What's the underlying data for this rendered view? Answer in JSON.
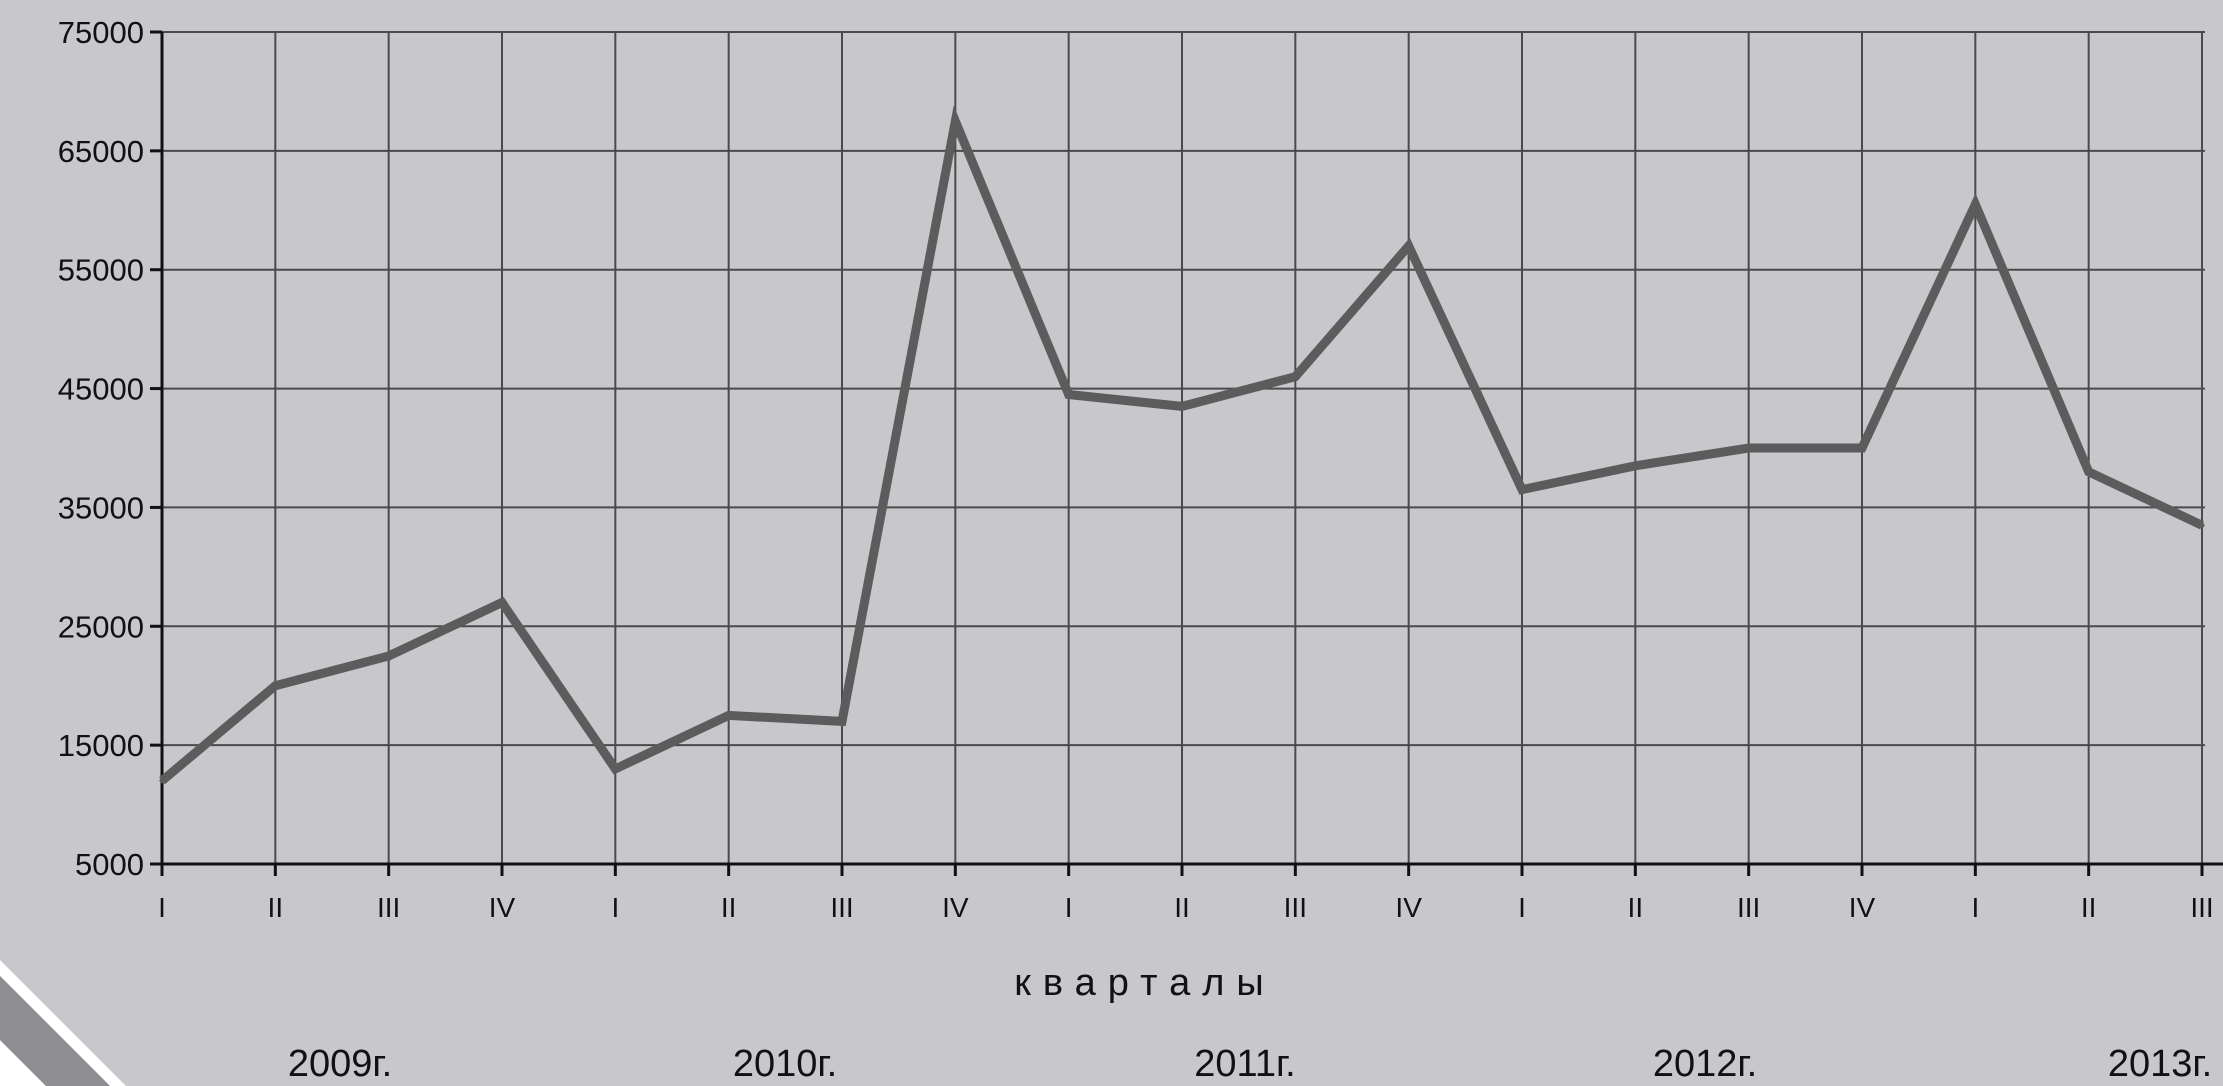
{
  "chart_data": {
    "type": "line",
    "title": "",
    "xlabel": "кварталы",
    "ylabel": "",
    "ylim": [
      5000,
      75000
    ],
    "yticks": [
      5000,
      15000,
      25000,
      35000,
      45000,
      55000,
      65000,
      75000
    ],
    "grid": true,
    "legend": "none",
    "categories": [
      "I",
      "II",
      "III",
      "IV",
      "I",
      "II",
      "III",
      "IV",
      "I",
      "II",
      "III",
      "IV",
      "I",
      "II",
      "III",
      "IV",
      "I",
      "II",
      "III"
    ],
    "year_labels": [
      "2009г.",
      "2010г.",
      "2011г.",
      "2012г.",
      "2013г."
    ],
    "series": [
      {
        "values": [
          12000,
          20000,
          22500,
          27000,
          13000,
          17500,
          17000,
          67500,
          44500,
          43500,
          46000,
          57000,
          36500,
          38500,
          40000,
          40000,
          60500,
          38000,
          33500
        ]
      }
    ]
  },
  "colors": {
    "background": "#c8c8cc",
    "grid": "#4a4a4a",
    "axis": "#111111",
    "line": "#5c5c5c",
    "corner_white": "#ffffff",
    "corner_shadow": "#8e8e92"
  }
}
